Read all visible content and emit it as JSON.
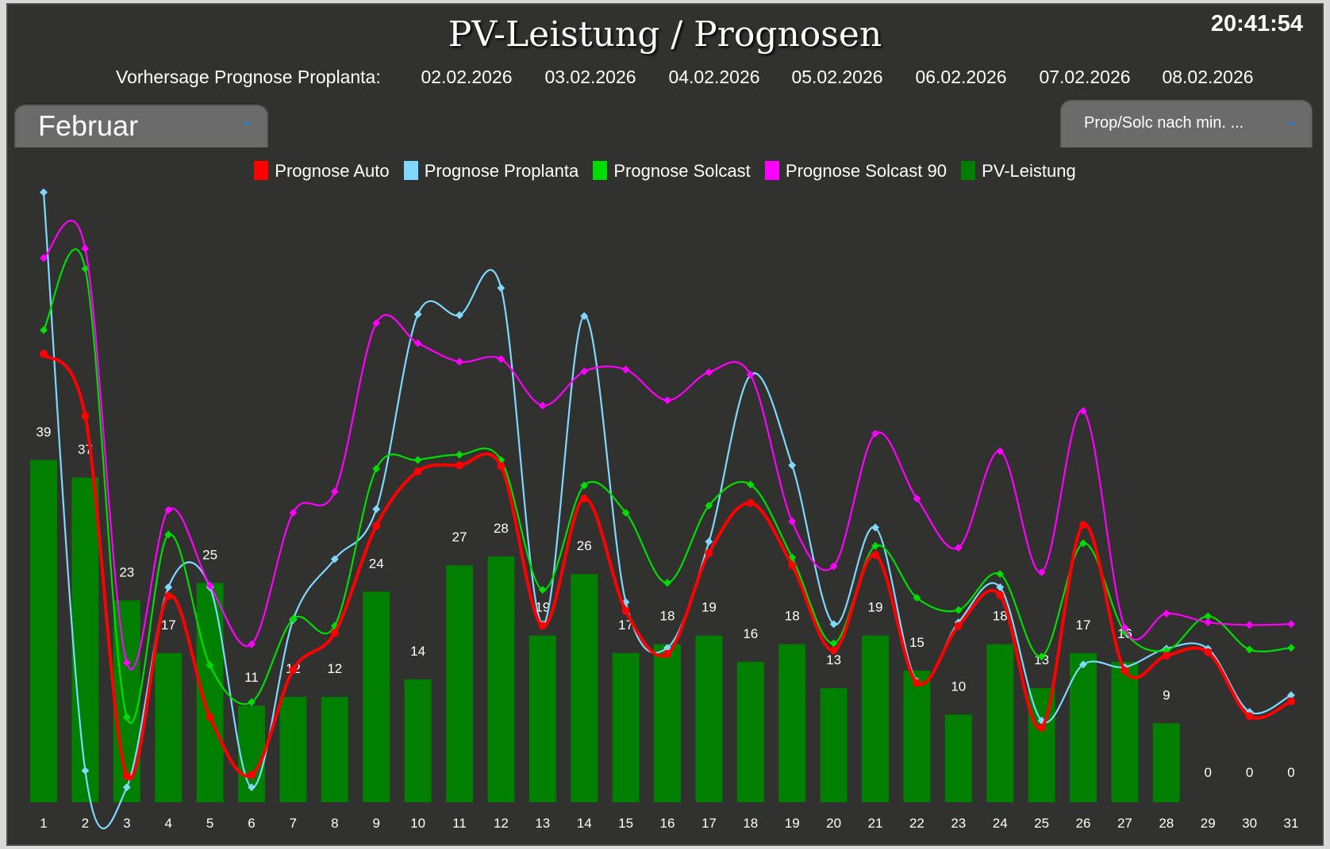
{
  "page_title": "PV-Leistung / Prognosen",
  "clock": "20:41:54",
  "forecast": {
    "label": "Vorhersage Prognose Proplanta:",
    "dates": [
      "02.02.2026",
      "03.02.2026",
      "04.02.2026",
      "05.02.2026",
      "06.02.2026",
      "07.02.2026",
      "08.02.2026"
    ]
  },
  "month_select": {
    "value": "Februar"
  },
  "mode_select": {
    "value": "Prop/Solc nach min. ..."
  },
  "legend": [
    {
      "label": "Prognose Auto",
      "color": "#ff0000"
    },
    {
      "label": "Prognose Proplanta",
      "color": "#80d8ff"
    },
    {
      "label": "Prognose Solcast",
      "color": "#00dd00"
    },
    {
      "label": "Prognose Solcast 90",
      "color": "#ff00ff"
    },
    {
      "label": "PV-Leistung",
      "color": "#007f00"
    }
  ],
  "chart_data": {
    "type": "bar",
    "title": "PV-Leistung / Prognosen",
    "categories": [
      "1",
      "2",
      "3",
      "4",
      "5",
      "6",
      "7",
      "8",
      "9",
      "10",
      "11",
      "12",
      "13",
      "14",
      "15",
      "16",
      "17",
      "18",
      "19",
      "20",
      "21",
      "22",
      "23",
      "24",
      "25",
      "26",
      "27",
      "28",
      "29",
      "30",
      "31"
    ],
    "ylim": [
      0,
      70
    ],
    "grid": false,
    "legend_position": "top",
    "bars": {
      "name": "PV-Leistung",
      "values": [
        39,
        37,
        23,
        17,
        25,
        11,
        12,
        12,
        24,
        14,
        27,
        28,
        19,
        26,
        17,
        18,
        19,
        16,
        18,
        13,
        19,
        15,
        10,
        18,
        13,
        17,
        16,
        9,
        0,
        0,
        0
      ],
      "labels": [
        "39",
        "37",
        "23",
        "17",
        "25",
        "11",
        "12",
        "12",
        "24",
        "14",
        "27",
        "28",
        "19",
        "26",
        "17",
        "18",
        "19",
        "16",
        "18",
        "13",
        "19",
        "15",
        "10",
        "18",
        "13",
        "17",
        "16",
        "9",
        "0",
        "0",
        "0"
      ]
    },
    "series": [
      {
        "name": "Prognose Proplanta",
        "values": [
          69.5,
          3.6,
          1.7,
          24.5,
          24.5,
          1.7,
          20.8,
          27.7,
          33.4,
          55.6,
          55.5,
          58.6,
          20.3,
          55.4,
          22.8,
          17.6,
          29.7,
          48.7,
          38.4,
          20.3,
          31.3,
          13.8,
          20.5,
          24.5,
          9.3,
          15.7,
          15.4,
          17.5,
          17.5,
          10.3,
          12.2
        ]
      },
      {
        "name": "Prognose Solcast",
        "values": [
          53.8,
          60.8,
          9.7,
          30.5,
          15.6,
          11.4,
          20.9,
          20.1,
          38.0,
          39.0,
          39.6,
          39.0,
          24.2,
          36.1,
          33.0,
          25.0,
          33.8,
          36.2,
          27.9,
          18.1,
          29.2,
          23.3,
          21.9,
          26.0,
          16.6,
          29.5,
          19.4,
          17.3,
          21.2,
          17.4,
          17.6
        ]
      },
      {
        "name": "Prognose Solcast 90",
        "values": [
          62.0,
          63.1,
          15.9,
          33.3,
          24.7,
          18.0,
          33.0,
          35.4,
          54.6,
          52.3,
          50.2,
          50.5,
          45.2,
          49.1,
          49.3,
          45.8,
          49.0,
          48.7,
          32.0,
          26.9,
          42.0,
          34.6,
          29.0,
          40.0,
          26.2,
          44.6,
          19.9,
          21.5,
          20.5,
          20.2,
          20.3
        ]
      },
      {
        "name": "Prognose Auto",
        "values": [
          51.1,
          44.0,
          3.0,
          23.5,
          9.7,
          3.1,
          15.1,
          19.3,
          31.5,
          37.7,
          38.4,
          38.3,
          20.1,
          34.6,
          21.8,
          16.9,
          28.4,
          34.1,
          27.0,
          17.3,
          28.2,
          13.6,
          20.1,
          23.6,
          8.5,
          31.6,
          15.0,
          16.7,
          17.1,
          9.8,
          11.5
        ]
      }
    ]
  }
}
